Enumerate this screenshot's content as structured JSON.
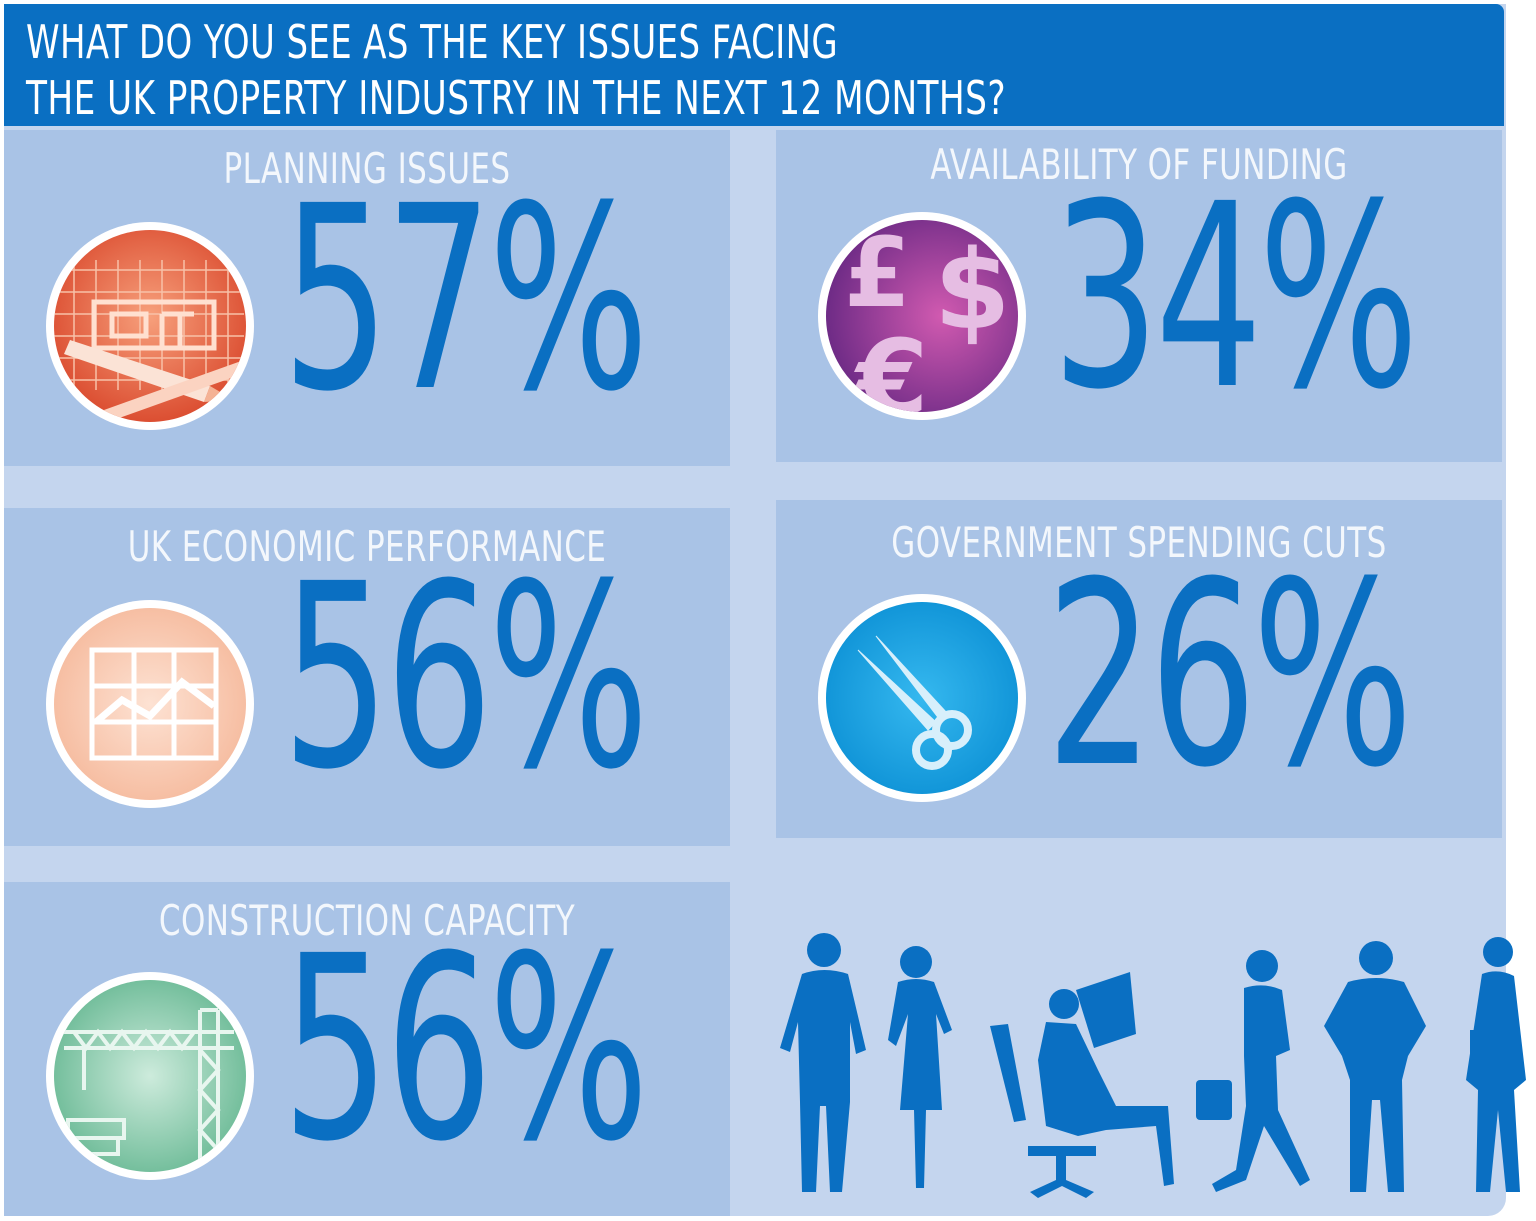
{
  "header": {
    "line1": "WHAT DO YOU SEE AS THE KEY ISSUES FACING",
    "line2": "THE UK PROPERTY INDUSTRY IN THE NEXT 12 MONTHS?"
  },
  "colors": {
    "accent": "#0a6fc2",
    "panel": "#a9c3e6",
    "background": "#c4d5ee",
    "planning_icon": "#e8603f",
    "funding_icon": "#a0469e",
    "economic_icon": "#f7c5ad",
    "cuts_icon": "#1aa6e6",
    "construction_icon": "#8fceb0"
  },
  "chart_data": {
    "type": "table",
    "title": "WHAT DO YOU SEE AS THE KEY ISSUES FACING THE UK PROPERTY INDUSTRY IN THE NEXT 12 MONTHS?",
    "categories": [
      "PLANNING ISSUES",
      "AVAILABILITY OF FUNDING",
      "UK ECONOMIC PERFORMANCE",
      "GOVERNMENT SPENDING CUTS",
      "CONSTRUCTION CAPACITY"
    ],
    "values": [
      57,
      34,
      56,
      26,
      56
    ],
    "unit": "%",
    "items": [
      {
        "label": "PLANNING ISSUES",
        "value": 57,
        "display": "57%",
        "icon": "blueprint-pencil-icon"
      },
      {
        "label": "AVAILABILITY OF FUNDING",
        "value": 34,
        "display": "34%",
        "icon": "currency-symbols-icon"
      },
      {
        "label": "UK ECONOMIC PERFORMANCE",
        "value": 56,
        "display": "56%",
        "icon": "line-chart-icon"
      },
      {
        "label": "GOVERNMENT SPENDING CUTS",
        "value": 26,
        "display": "26%",
        "icon": "scissors-icon"
      },
      {
        "label": "CONSTRUCTION CAPACITY",
        "value": 56,
        "display": "56%",
        "icon": "crane-icon"
      }
    ]
  },
  "icons": {
    "funding_symbols": [
      "£",
      "$",
      "€"
    ]
  }
}
